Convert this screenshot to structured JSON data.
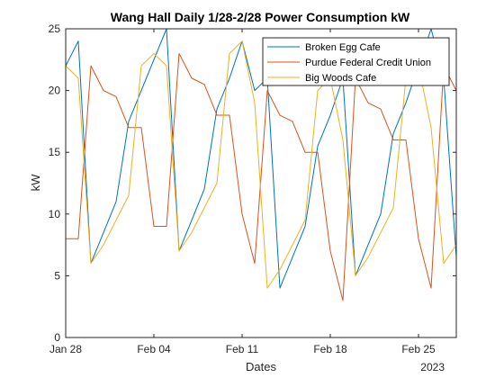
{
  "chart_data": {
    "type": "line",
    "title": "Wang Hall Daily  1/28-2/28  Power Consumption kW",
    "xlabel": "Dates",
    "ylabel": "kW",
    "x_year_label": "2023",
    "ylim": [
      0,
      25
    ],
    "yticks": [
      "0",
      "5",
      "10",
      "15",
      "20",
      "25"
    ],
    "xlim": [
      "2023-01-28",
      "2023-02-28"
    ],
    "xticks": [
      {
        "date": "2023-01-28",
        "label": "Jan 28"
      },
      {
        "date": "2023-02-04",
        "label": "Feb 04"
      },
      {
        "date": "2023-02-11",
        "label": "Feb 11"
      },
      {
        "date": "2023-02-18",
        "label": "Feb 18"
      },
      {
        "date": "2023-02-25",
        "label": "Feb 25"
      }
    ],
    "x": [
      "2023-01-28",
      "2023-01-29",
      "2023-01-30",
      "2023-01-31",
      "2023-02-01",
      "2023-02-02",
      "2023-02-03",
      "2023-02-04",
      "2023-02-05",
      "2023-02-06",
      "2023-02-07",
      "2023-02-08",
      "2023-02-09",
      "2023-02-10",
      "2023-02-11",
      "2023-02-12",
      "2023-02-13",
      "2023-02-14",
      "2023-02-15",
      "2023-02-16",
      "2023-02-17",
      "2023-02-18",
      "2023-02-19",
      "2023-02-20",
      "2023-02-21",
      "2023-02-22",
      "2023-02-23",
      "2023-02-24",
      "2023-02-25",
      "2023-02-26",
      "2023-02-27",
      "2023-02-28"
    ],
    "series": [
      {
        "name": "Broken Egg Cafe",
        "color": "#0072BD",
        "values": [
          22,
          24,
          6,
          8.5,
          11,
          17.5,
          20,
          22.5,
          25,
          7,
          9.5,
          12,
          18.5,
          21,
          24,
          20,
          21,
          4,
          6.5,
          9,
          15.5,
          18,
          21,
          5,
          7.5,
          10,
          16.5,
          19,
          22,
          25,
          21,
          6.5
        ]
      },
      {
        "name": "Purdue Federal Credit Union",
        "color": "#D95319",
        "values": [
          8,
          8,
          22,
          20,
          19.5,
          17,
          17,
          9,
          9,
          23,
          21,
          20.5,
          18,
          18,
          10,
          6,
          20,
          18,
          17.5,
          15,
          15,
          7,
          3,
          21,
          19,
          18.5,
          16,
          16,
          8,
          4,
          22,
          20
        ]
      },
      {
        "name": "Big Woods Cafe",
        "color": "#EDB120",
        "values": [
          22,
          21,
          6,
          7.5,
          9.5,
          11.5,
          22,
          23,
          22,
          7,
          8.5,
          10.5,
          12.5,
          23,
          24,
          19,
          4,
          5.5,
          7.5,
          9.5,
          20,
          21,
          16,
          5,
          6.5,
          8.5,
          10.5,
          21,
          22,
          17,
          6,
          7.5
        ]
      }
    ],
    "legend_position": "top-right",
    "grid": false
  }
}
